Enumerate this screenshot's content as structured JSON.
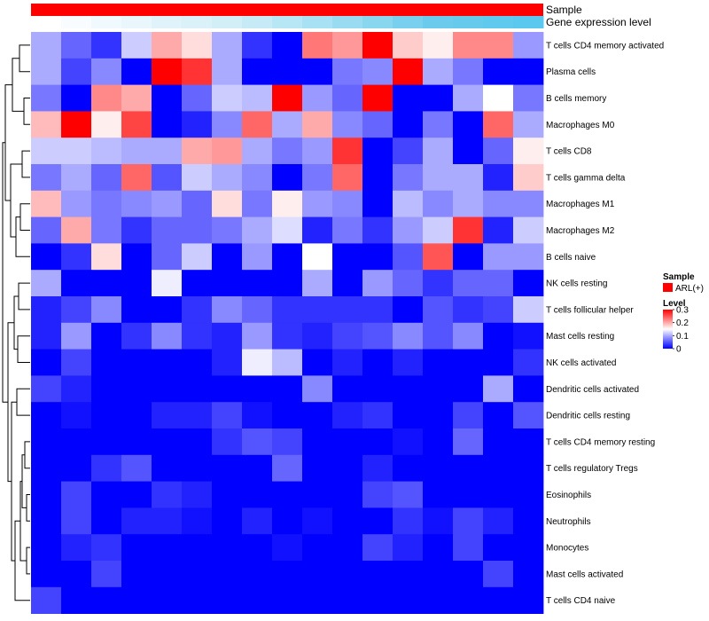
{
  "chart_data": {
    "type": "heatmap",
    "annotation_tracks": [
      {
        "name": "Sample",
        "label": "Sample"
      },
      {
        "name": "Gene expression level",
        "label": "Gene expression level"
      }
    ],
    "sample_group": "ARL(+)",
    "expression_gradient": [
      "#ffffff",
      "#e7f5fb",
      "#cfeef8",
      "#9fdef2",
      "#6ccbec",
      "#5bc8ef"
    ],
    "rows": [
      "T cells CD4 memory activated",
      "Plasma cells",
      "B cells memory",
      "Macrophages M0",
      "T cells CD8",
      "T cells gamma delta",
      "Macrophages M1",
      "Macrophages M2",
      "B cells naive",
      "NK cells resting",
      "T cells follicular helper",
      "Mast cells resting",
      "NK cells activated",
      "Dendritic cells activated",
      "Dendritic cells resting",
      "T cells CD4 memory resting",
      "T cells regulatory  Tregs",
      "Eosinophils",
      "Neutrophils",
      "Monocytes",
      "Mast cells activated",
      "T cells CD4 naive"
    ],
    "n_columns": 17,
    "values": [
      [
        0.1,
        0.06,
        0.03,
        0.12,
        0.2,
        0.17,
        0.1,
        0.03,
        0.0,
        0.23,
        0.21,
        0.3,
        0.18,
        0.16,
        0.22,
        0.22,
        0.09
      ],
      [
        0.1,
        0.04,
        0.08,
        0.0,
        0.3,
        0.27,
        0.1,
        0.0,
        0.0,
        0.0,
        0.07,
        0.08,
        0.3,
        0.1,
        0.07,
        0.0,
        0.0
      ],
      [
        0.07,
        0.0,
        0.22,
        0.2,
        0.0,
        0.06,
        0.12,
        0.11,
        0.3,
        0.09,
        0.06,
        0.3,
        0.0,
        0.0,
        0.1,
        0.15,
        0.07
      ],
      [
        0.19,
        0.3,
        0.16,
        0.26,
        0.0,
        0.02,
        0.08,
        0.24,
        0.1,
        0.2,
        0.08,
        0.06,
        0.0,
        0.07,
        0.0,
        0.24,
        0.1
      ],
      [
        0.12,
        0.12,
        0.11,
        0.1,
        0.1,
        0.2,
        0.21,
        0.1,
        0.07,
        0.09,
        0.27,
        0.0,
        0.04,
        0.1,
        0.0,
        0.06,
        0.16
      ],
      [
        0.07,
        0.1,
        0.06,
        0.24,
        0.05,
        0.12,
        0.1,
        0.08,
        0.0,
        0.07,
        0.24,
        0.0,
        0.07,
        0.1,
        0.1,
        0.02,
        0.18
      ],
      [
        0.19,
        0.09,
        0.07,
        0.08,
        0.09,
        0.06,
        0.17,
        0.07,
        0.16,
        0.09,
        0.08,
        0.0,
        0.11,
        0.08,
        0.1,
        0.08,
        0.08
      ],
      [
        0.06,
        0.2,
        0.07,
        0.03,
        0.06,
        0.06,
        0.07,
        0.1,
        0.13,
        0.02,
        0.07,
        0.03,
        0.09,
        0.12,
        0.27,
        0.02,
        0.12
      ],
      [
        0.0,
        0.03,
        0.17,
        0.0,
        0.06,
        0.12,
        0.0,
        0.09,
        0.0,
        0.15,
        0.0,
        0.0,
        0.05,
        0.25,
        0.0,
        0.09,
        0.09
      ],
      [
        0.1,
        0.0,
        0.0,
        0.0,
        0.14,
        0.0,
        0.0,
        0.0,
        0.0,
        0.1,
        0.0,
        0.09,
        0.06,
        0.03,
        0.06,
        0.06,
        0.0
      ],
      [
        0.02,
        0.04,
        0.08,
        0.0,
        0.0,
        0.03,
        0.08,
        0.06,
        0.03,
        0.03,
        0.03,
        0.03,
        0.0,
        0.05,
        0.03,
        0.04,
        0.12
      ],
      [
        0.02,
        0.09,
        0.0,
        0.03,
        0.08,
        0.03,
        0.02,
        0.09,
        0.03,
        0.02,
        0.04,
        0.05,
        0.08,
        0.05,
        0.08,
        0.0,
        0.01
      ],
      [
        0.0,
        0.04,
        0.0,
        0.0,
        0.0,
        0.0,
        0.02,
        0.14,
        0.11,
        0.0,
        0.02,
        0.0,
        0.02,
        0.0,
        0.0,
        0.0,
        0.03
      ],
      [
        0.04,
        0.02,
        0.0,
        0.0,
        0.0,
        0.0,
        0.0,
        0.0,
        0.0,
        0.08,
        0.0,
        0.0,
        0.0,
        0.0,
        0.0,
        0.1,
        0.0
      ],
      [
        0.0,
        0.01,
        0.0,
        0.0,
        0.02,
        0.02,
        0.04,
        0.01,
        0.0,
        0.0,
        0.02,
        0.03,
        0.0,
        0.0,
        0.04,
        0.0,
        0.05
      ],
      [
        0.0,
        0.0,
        0.0,
        0.0,
        0.0,
        0.0,
        0.03,
        0.05,
        0.04,
        0.0,
        0.0,
        0.0,
        0.01,
        0.0,
        0.06,
        0.0,
        0.0
      ],
      [
        0.0,
        0.0,
        0.03,
        0.05,
        0.0,
        0.0,
        0.0,
        0.0,
        0.06,
        0.0,
        0.0,
        0.02,
        0.0,
        0.0,
        0.0,
        0.0,
        0.0
      ],
      [
        0.0,
        0.04,
        0.0,
        0.0,
        0.03,
        0.02,
        0.0,
        0.0,
        0.0,
        0.0,
        0.0,
        0.04,
        0.05,
        0.0,
        0.0,
        0.0,
        0.0
      ],
      [
        0.0,
        0.04,
        0.0,
        0.02,
        0.02,
        0.01,
        0.0,
        0.02,
        0.0,
        0.01,
        0.0,
        0.0,
        0.03,
        0.01,
        0.04,
        0.02,
        0.0
      ],
      [
        0.0,
        0.02,
        0.03,
        0.0,
        0.0,
        0.0,
        0.0,
        0.0,
        0.01,
        0.0,
        0.0,
        0.04,
        0.02,
        0.0,
        0.04,
        0.0,
        0.0
      ],
      [
        0.0,
        0.0,
        0.04,
        0.0,
        0.0,
        0.0,
        0.0,
        0.0,
        0.0,
        0.0,
        0.0,
        0.0,
        0.0,
        0.0,
        0.0,
        0.04,
        0.0
      ],
      [
        0.04,
        0.0,
        0.0,
        0.0,
        0.0,
        0.0,
        0.0,
        0.0,
        0.0,
        0.0,
        0.0,
        0.0,
        0.0,
        0.0,
        0.0,
        0.0,
        0.0
      ]
    ],
    "color_scale": {
      "low": "#0000ff",
      "mid": "#ffffff",
      "high": "#ff0000",
      "min": 0,
      "mid_value": 0.15,
      "max": 0.3
    },
    "colors": {
      "sample_bar": "#ff0000"
    },
    "legend": {
      "sample_title": "Sample",
      "sample_item": "ARL(+)",
      "level_title": "Level",
      "level_ticks": [
        0.3,
        0.2,
        0.1,
        0
      ],
      "level_tick_labels": [
        "0.3",
        "0.2",
        "0.1",
        "0"
      ]
    }
  }
}
